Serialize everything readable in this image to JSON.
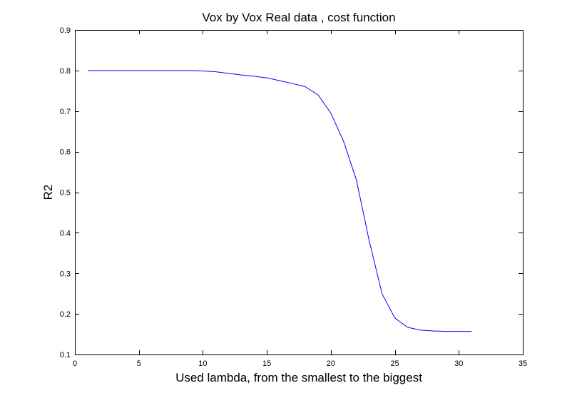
{
  "chart_data": {
    "type": "line",
    "title": "Vox by Vox Real data , cost function",
    "xlabel": "Used lambda, from the smallest to the biggest",
    "ylabel": "R2",
    "xlim": [
      0,
      35
    ],
    "ylim": [
      0.1,
      0.9
    ],
    "xticks": [
      "0",
      "5",
      "10",
      "15",
      "20",
      "25",
      "30",
      "35"
    ],
    "yticks": [
      "0.1",
      "0.2",
      "0.3",
      "0.4",
      "0.5",
      "0.6",
      "0.7",
      "0.8",
      "0.9"
    ],
    "grid": false,
    "legend": "none",
    "series": [
      {
        "color": "#0000ff",
        "x": [
          1,
          2,
          3,
          4,
          5,
          6,
          7,
          8,
          9,
          10,
          11,
          12,
          13,
          14,
          15,
          16,
          17,
          18,
          19,
          20,
          21,
          22,
          23,
          24,
          25,
          26,
          27,
          28,
          29,
          30,
          31
        ],
        "y": [
          0.8,
          0.8,
          0.8,
          0.8,
          0.8,
          0.8,
          0.8,
          0.8,
          0.8,
          0.799,
          0.797,
          0.793,
          0.789,
          0.786,
          0.782,
          0.775,
          0.768,
          0.76,
          0.74,
          0.695,
          0.625,
          0.53,
          0.38,
          0.25,
          0.19,
          0.167,
          0.16,
          0.158,
          0.157,
          0.157,
          0.157
        ]
      }
    ]
  }
}
